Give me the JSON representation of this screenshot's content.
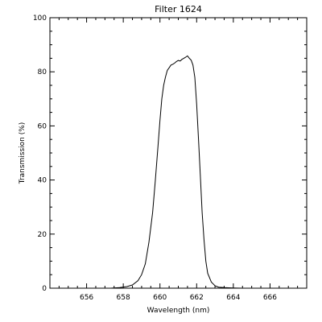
{
  "chart_data": {
    "type": "line",
    "title": "Filter 1624",
    "xlabel": "Wavelength (nm)",
    "ylabel": "Transmission (%)",
    "xlim": [
      654.0,
      668.0
    ],
    "ylim": [
      0,
      100
    ],
    "xticks": [
      656,
      658,
      660,
      662,
      664,
      666
    ],
    "yticks": [
      0,
      20,
      40,
      60,
      80,
      100
    ],
    "x_minor_step": 0.5,
    "y_minor_step": 5,
    "grid": false,
    "series": [
      {
        "x": [
          657.3,
          657.8,
          658.2,
          658.5,
          658.8,
          659.0,
          659.2,
          659.4,
          659.6,
          659.75,
          659.9,
          660.0,
          660.1,
          660.2,
          660.3,
          660.4,
          660.5,
          660.6,
          660.7,
          660.8,
          660.9,
          661.0,
          661.1,
          661.2,
          661.3,
          661.4,
          661.5,
          661.6,
          661.7,
          661.8,
          661.9,
          662.0,
          662.1,
          662.2,
          662.3,
          662.4,
          662.5,
          662.6,
          662.8,
          663.0,
          663.2,
          663.5,
          664.0,
          664.5,
          665.0
        ],
        "y": [
          0.0,
          0.2,
          0.6,
          1.2,
          2.8,
          5.0,
          9.0,
          17.0,
          28.0,
          40.0,
          53.0,
          62.0,
          70.0,
          75.0,
          78.0,
          80.5,
          81.5,
          82.5,
          82.8,
          83.2,
          83.8,
          84.2,
          84.0,
          84.6,
          85.0,
          85.4,
          85.9,
          85.0,
          84.3,
          82.5,
          78.0,
          68.0,
          55.0,
          42.0,
          28.0,
          18.0,
          10.0,
          5.5,
          2.3,
          0.9,
          0.4,
          0.2,
          0.1,
          0.0,
          0.0
        ]
      }
    ]
  }
}
